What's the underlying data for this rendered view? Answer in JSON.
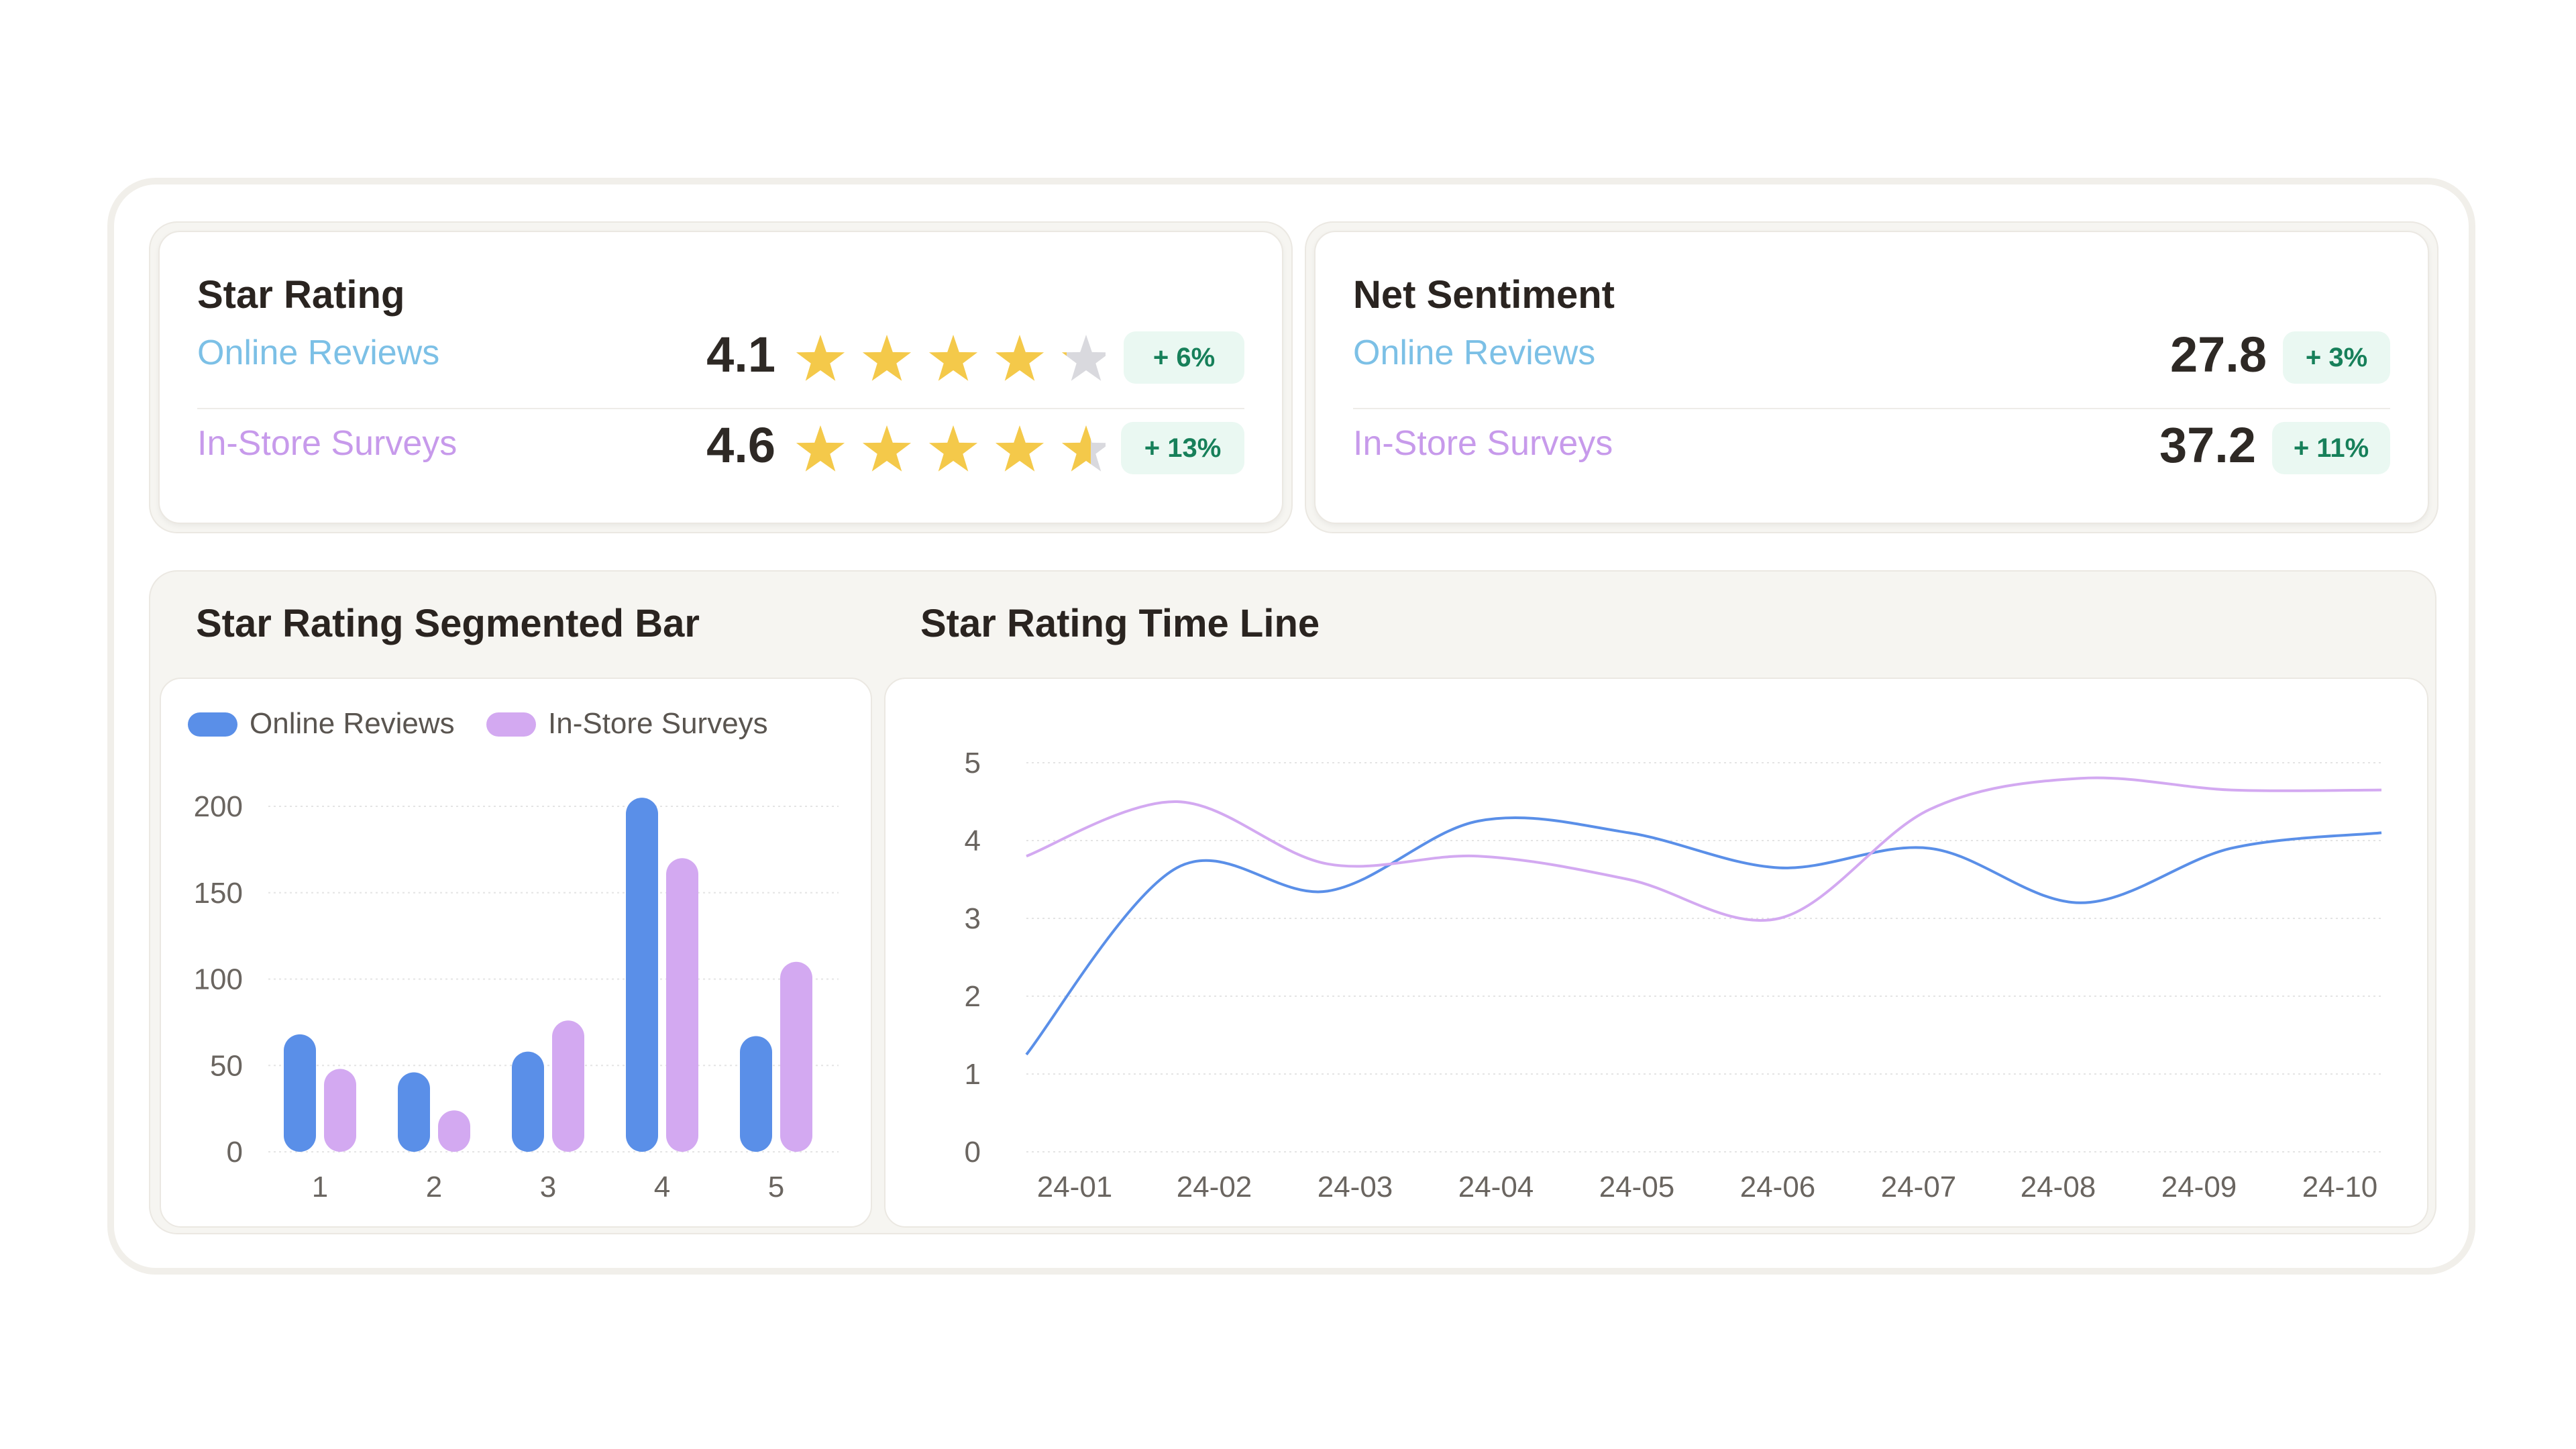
{
  "star_rating_card": {
    "title": "Star Rating",
    "rows": [
      {
        "label": "Online Reviews",
        "value": "4.1",
        "rating": 4.1,
        "change": "+ 6%"
      },
      {
        "label": "In-Store Surveys",
        "value": "4.6",
        "rating": 4.6,
        "change": "+ 13%"
      }
    ]
  },
  "net_sentiment_card": {
    "title": "Net Sentiment",
    "rows": [
      {
        "label": "Online Reviews",
        "value": "27.8",
        "change": "+ 3%"
      },
      {
        "label": "In-Store Surveys",
        "value": "37.2",
        "change": "+ 11%"
      }
    ]
  },
  "colors": {
    "online": "#5a8fe8",
    "instore": "#d3a9f1",
    "star_on": "#f4c94a",
    "star_off": "#d9d9de",
    "badge_bg": "#eaf8f2",
    "badge_text": "#17805a"
  },
  "chart_data": [
    {
      "type": "bar",
      "title": "Star Rating Segmented Bar",
      "categories": [
        "1",
        "2",
        "3",
        "4",
        "5"
      ],
      "series": [
        {
          "name": "Online Reviews",
          "values": [
            68,
            46,
            58,
            205,
            67
          ]
        },
        {
          "name": "In-Store Surveys",
          "values": [
            48,
            24,
            76,
            170,
            110
          ]
        }
      ],
      "ylim": [
        0,
        200
      ],
      "yticks": [
        "0",
        "50",
        "100",
        "150",
        "200"
      ],
      "legend": "top-left",
      "grid": true
    },
    {
      "type": "line",
      "title": "Star Rating Time Line",
      "x": [
        "24-01",
        "24-02",
        "24-03",
        "24-04",
        "24-05",
        "24-06",
        "24-07",
        "24-08",
        "24-09",
        "24-10"
      ],
      "series": [
        {
          "name": "Online Reviews",
          "values": [
            1.25,
            3.65,
            3.35,
            4.25,
            4.1,
            3.65,
            3.9,
            3.2,
            3.9,
            4.1
          ]
        },
        {
          "name": "In-Store Surveys",
          "values": [
            3.8,
            4.5,
            3.7,
            3.8,
            3.5,
            3.0,
            4.4,
            4.8,
            4.65,
            4.65
          ]
        }
      ],
      "ylim": [
        0,
        5
      ],
      "yticks": [
        "0",
        "1",
        "2",
        "3",
        "4",
        "5"
      ],
      "grid": true
    }
  ]
}
